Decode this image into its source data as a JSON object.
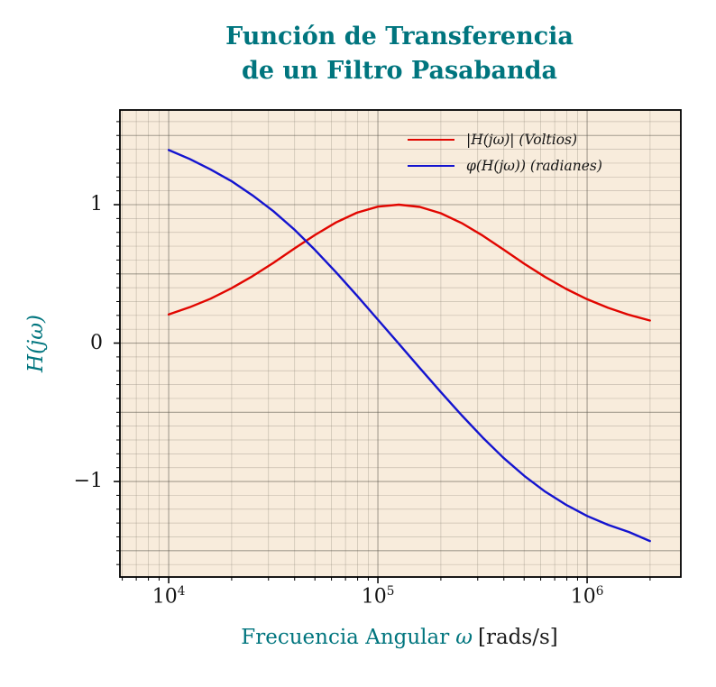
{
  "title": {
    "line1": "Función de Transferencia",
    "line2": "de un Filtro Pasabanda"
  },
  "axes": {
    "x_label_text": "Frecuencia Angular",
    "x_label_symbol": "ω",
    "x_label_unit": "[rads/s]",
    "y_label": "H(jω)",
    "x_ticks": [
      {
        "base": "10",
        "exp": "4",
        "log10": 4
      },
      {
        "base": "10",
        "exp": "5",
        "log10": 5
      },
      {
        "base": "10",
        "exp": "6",
        "log10": 6
      }
    ],
    "y_ticks": [
      {
        "label": "1",
        "value": 1
      },
      {
        "label": "0",
        "value": 0
      },
      {
        "label": "−1",
        "value": -1
      }
    ]
  },
  "legend": [
    {
      "label": "|H(jω)| (Voltios)",
      "color": "#e10600"
    },
    {
      "label": "φ(H(jω)) (radianes)",
      "color": "#1414cf"
    }
  ],
  "colors": {
    "accent_teal": "#00757e",
    "plot_background": "#f8ecdc",
    "grid_minor": "#8e8678",
    "grid_major": "#5f5a50",
    "frame": "#000000",
    "text": "#151515",
    "magnitude_line": "#e10600",
    "phase_line": "#1414cf"
  },
  "chart_data": {
    "type": "line",
    "title": "Función de Transferencia de un Filtro Pasabanda",
    "xlabel": "Frecuencia Angular ω [rads/s]",
    "ylabel": "H(jω)",
    "x_scale": "log",
    "grid": "on (log minor x, 0.1 minor y, 0.5 major y)",
    "legend_position": "upper right inside",
    "xlim_log10": [
      3.767,
      6.448
    ],
    "ylim": [
      -1.69,
      1.684
    ],
    "x_major_ticks_log10": [
      4,
      5,
      6
    ],
    "y_major_ticks": [
      1,
      0,
      -1
    ],
    "series": [
      {
        "name": "|H(jω)| (Voltios)",
        "color": "#e10600",
        "x_log10": [
          4.0,
          4.1,
          4.2,
          4.3,
          4.4,
          4.5,
          4.6,
          4.7,
          4.8,
          4.9,
          5.0,
          5.1,
          5.2,
          5.3,
          5.4,
          5.5,
          5.6,
          5.7,
          5.8,
          5.9,
          6.0,
          6.1,
          6.2,
          6.3
        ],
        "y": [
          0.207,
          0.259,
          0.321,
          0.396,
          0.483,
          0.579,
          0.682,
          0.782,
          0.872,
          0.942,
          0.986,
          1.0,
          0.984,
          0.938,
          0.867,
          0.777,
          0.676,
          0.573,
          0.477,
          0.391,
          0.317,
          0.255,
          0.204,
          0.163
        ]
      },
      {
        "name": "φ(H(jω)) (radianes)",
        "color": "#1414cf",
        "x_log10": [
          4.0,
          4.1,
          4.2,
          4.3,
          4.4,
          4.5,
          4.6,
          4.7,
          4.8,
          4.9,
          5.0,
          5.1,
          5.2,
          5.3,
          5.4,
          5.5,
          5.6,
          5.7,
          5.8,
          5.9,
          6.0,
          6.1,
          6.2,
          6.3
        ],
        "y": [
          1.395,
          1.33,
          1.255,
          1.17,
          1.068,
          0.953,
          0.821,
          0.672,
          0.511,
          0.343,
          0.169,
          -0.005,
          -0.18,
          -0.353,
          -0.521,
          -0.681,
          -0.829,
          -0.96,
          -1.074,
          -1.169,
          -1.249,
          -1.313,
          -1.365,
          -1.43
        ]
      }
    ]
  }
}
